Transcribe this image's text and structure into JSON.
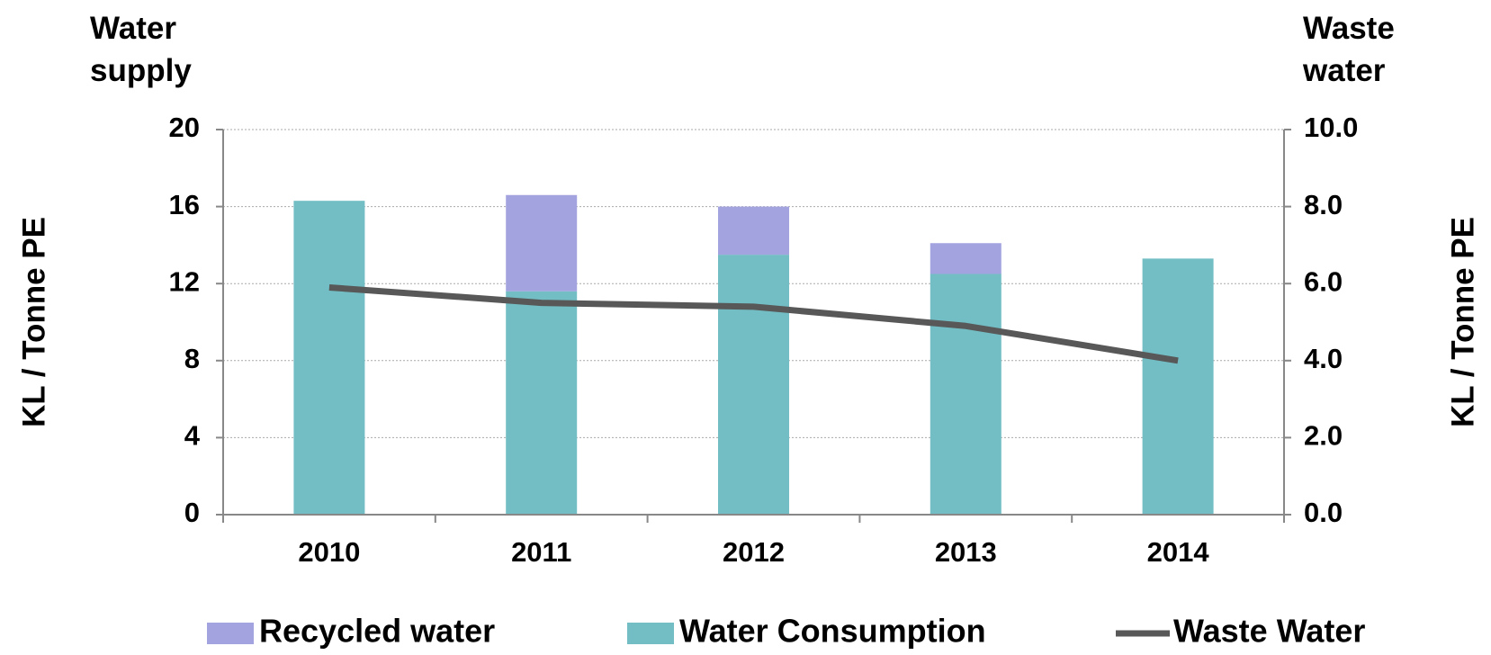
{
  "chart_data": {
    "type": "bar",
    "y_label_top": "Water supply",
    "y2_label_top": "Waste water",
    "y_label": "KL / Tonne PE",
    "y2_label": "KL / Tonne PE",
    "categories": [
      "2010",
      "2011",
      "2012",
      "2013",
      "2014"
    ],
    "series": [
      {
        "name": "Recycled water",
        "type": "bar",
        "color": "#a3a3e0",
        "values": [
          0,
          5.0,
          2.5,
          1.6,
          0
        ]
      },
      {
        "name": "Water Consumption",
        "type": "bar",
        "color": "#72bec4",
        "values": [
          16.3,
          11.6,
          13.5,
          12.5,
          13.3
        ]
      },
      {
        "name": "Waste Water",
        "type": "line",
        "axis": "y2",
        "color": "#585858",
        "values": [
          5.9,
          5.5,
          5.4,
          4.9,
          4.0
        ]
      }
    ],
    "ylim": [
      0,
      20
    ],
    "yticks": [
      0,
      4,
      8,
      12,
      16,
      20
    ],
    "y2lim": [
      0,
      10
    ],
    "y2ticks": [
      {
        "value": 0,
        "label": "0.0"
      },
      {
        "value": 2,
        "label": "2.0"
      },
      {
        "value": 4,
        "label": "4.0"
      },
      {
        "value": 6,
        "label": "6.0"
      },
      {
        "value": 8,
        "label": "8.0"
      },
      {
        "value": 10,
        "label": "10.0"
      }
    ],
    "grid": true,
    "legend": "bottom"
  }
}
